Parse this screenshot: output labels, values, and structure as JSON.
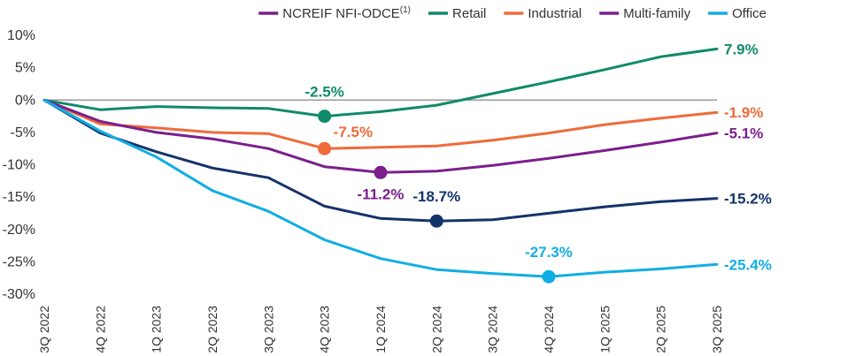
{
  "chart_data": {
    "type": "line",
    "title": "",
    "xlabel": "",
    "ylabel": "",
    "x": [
      "3Q 2022",
      "4Q 2022",
      "1Q 2023",
      "2Q 2023",
      "3Q 2023",
      "4Q 2023",
      "1Q 2024",
      "2Q 2024",
      "3Q 2024",
      "4Q 2024",
      "1Q 2025",
      "2Q 2025",
      "3Q 2025"
    ],
    "ylim": [
      -30,
      10
    ],
    "yticks": [
      10,
      5,
      0,
      -5,
      -10,
      -15,
      -20,
      -25,
      -30
    ],
    "ytick_labels": [
      "10%",
      "5%",
      "0%",
      "-5%",
      "-10%",
      "-15%",
      "-20%",
      "-25%",
      "-30%"
    ],
    "grid": false,
    "zero_line": true,
    "legend_position": "top-right",
    "legend": [
      {
        "label": "NCREIF NFI-ODCE",
        "superscript": "(1)",
        "color": "#7B1F8C"
      },
      {
        "label": "Retail",
        "color": "#0F8A6A"
      },
      {
        "label": "Industrial",
        "color": "#EE6B3B"
      },
      {
        "label": "Multi-family",
        "color": "#7B1F8C"
      },
      {
        "label": "Office",
        "color": "#10AEE3"
      }
    ],
    "series": [
      {
        "key": "retail",
        "name": "Retail",
        "color": "#0F8A6A",
        "values": [
          0,
          -1.5,
          -1.0,
          -1.2,
          -1.3,
          -2.5,
          -1.8,
          -0.8,
          1.0,
          2.8,
          4.7,
          6.7,
          7.9
        ],
        "marker": {
          "index": 5,
          "label": "-2.5%",
          "label_pos": "above"
        },
        "end_label": "7.9%"
      },
      {
        "key": "industrial",
        "name": "Industrial",
        "color": "#EE6B3B",
        "values": [
          0,
          -3.7,
          -4.3,
          -5.0,
          -5.2,
          -7.5,
          -7.3,
          -7.1,
          -6.2,
          -5.1,
          -3.8,
          -2.8,
          -1.9
        ],
        "marker": {
          "index": 5,
          "label": "-7.5%",
          "label_pos": "right"
        },
        "end_label": "-1.9%"
      },
      {
        "key": "multifamily",
        "name": "Multi-family",
        "color": "#7B1F8C",
        "values": [
          0,
          -3.3,
          -5.0,
          -6.0,
          -7.5,
          -10.3,
          -11.2,
          -11.0,
          -10.1,
          -9.0,
          -7.8,
          -6.5,
          -5.1
        ],
        "marker": {
          "index": 6,
          "label": "-11.2%",
          "label_pos": "below"
        },
        "end_label": "-5.1%"
      },
      {
        "key": "odce",
        "name": "NCREIF NFI-ODCE",
        "color": "#15336B",
        "values": [
          0,
          -5.1,
          -8.0,
          -10.5,
          -12.0,
          -16.4,
          -18.3,
          -18.7,
          -18.5,
          -17.5,
          -16.5,
          -15.7,
          -15.2
        ],
        "marker": {
          "index": 7,
          "label": "-18.7%",
          "label_pos": "above"
        },
        "end_label": "-15.2%"
      },
      {
        "key": "office",
        "name": "Office",
        "color": "#10AEE3",
        "values": [
          0,
          -4.8,
          -8.8,
          -14.0,
          -17.2,
          -21.6,
          -24.5,
          -26.2,
          -26.8,
          -27.3,
          -26.6,
          -26.1,
          -25.4
        ],
        "marker": {
          "index": 9,
          "label": "-27.3%",
          "label_pos": "above"
        },
        "end_label": "-25.4%"
      }
    ]
  }
}
